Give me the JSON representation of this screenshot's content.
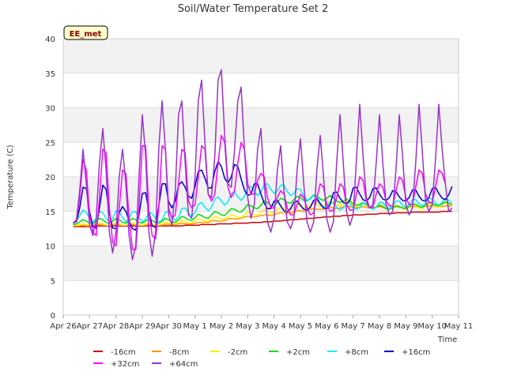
{
  "chart_data": {
    "type": "line",
    "title": "Soil/Water Temperature Set 2",
    "xlabel": "Time",
    "ylabel": "Temperature (C)",
    "badge": "EE_met",
    "ylim": [
      0,
      40
    ],
    "yticks": [
      0,
      5,
      10,
      15,
      20,
      25,
      30,
      35,
      40
    ],
    "xlim": [
      "2024-04-26",
      "2024-05-11"
    ],
    "xticks": [
      "Apr 26",
      "Apr 27",
      "Apr 28",
      "Apr 29",
      "Apr 30",
      "May 1",
      "May 2",
      "May 3",
      "May 4",
      "May 5",
      "May 6",
      "May 7",
      "May 8",
      "May 9",
      "May 10",
      "May 11"
    ],
    "x_start": "2024-04-26T09:00",
    "step_hours": 3,
    "grid": true,
    "legend_position": "bottom",
    "series": [
      {
        "name": "-16cm",
        "color": "#cc0000",
        "values": [
          12.8,
          12.8,
          12.8,
          12.8,
          12.8,
          12.8,
          12.9,
          12.9,
          12.9,
          12.9,
          12.9,
          12.9,
          12.9,
          12.9,
          12.9,
          12.9,
          12.9,
          12.9,
          12.9,
          12.9,
          12.9,
          12.9,
          12.9,
          12.9,
          12.9,
          12.9,
          12.9,
          12.9,
          12.9,
          12.9,
          12.9,
          12.9,
          12.9,
          12.9,
          13.0,
          13.0,
          13.0,
          13.0,
          13.0,
          13.1,
          13.1,
          13.1,
          13.1,
          13.1,
          13.2,
          13.2,
          13.2,
          13.2,
          13.2,
          13.3,
          13.3,
          13.3,
          13.3,
          13.3,
          13.4,
          13.4,
          13.4,
          13.4,
          13.5,
          13.5,
          13.5,
          13.6,
          13.6,
          13.6,
          13.7,
          13.7,
          13.8,
          13.8,
          13.8,
          13.9,
          13.9,
          14.0,
          14.0,
          14.0,
          14.1,
          14.1,
          14.2,
          14.2,
          14.2,
          14.3,
          14.3,
          14.3,
          14.4,
          14.4,
          14.4,
          14.5,
          14.5,
          14.5,
          14.5,
          14.6,
          14.6,
          14.6,
          14.6,
          14.7,
          14.7,
          14.7,
          14.7,
          14.7,
          14.8,
          14.8,
          14.8,
          14.8,
          14.8,
          14.9,
          14.9,
          14.9,
          14.9,
          14.9,
          14.9,
          14.9,
          14.9,
          14.9,
          15.0,
          15.0,
          15.0,
          15.0
        ]
      },
      {
        "name": "-8cm",
        "color": "#ff9900",
        "values": [
          12.9,
          12.9,
          12.9,
          13.0,
          12.9,
          12.9,
          13.0,
          13.0,
          13.1,
          13.0,
          13.0,
          13.0,
          13.0,
          13.1,
          13.0,
          13.0,
          13.0,
          13.0,
          13.1,
          13.0,
          13.0,
          13.0,
          13.0,
          13.1,
          13.0,
          13.0,
          13.0,
          13.0,
          13.2,
          13.1,
          13.1,
          13.1,
          13.2,
          13.3,
          13.2,
          13.2,
          13.2,
          13.3,
          13.4,
          13.4,
          13.4,
          13.4,
          13.6,
          13.7,
          13.6,
          13.6,
          13.7,
          13.9,
          14.0,
          13.9,
          13.9,
          14.0,
          14.2,
          14.3,
          14.2,
          14.2,
          14.3,
          14.4,
          14.5,
          14.5,
          14.4,
          14.5,
          14.7,
          14.8,
          14.8,
          14.7,
          14.8,
          14.9,
          15.1,
          15.1,
          15.0,
          15.1,
          15.3,
          15.4,
          15.3,
          15.3,
          15.3,
          15.5,
          15.6,
          15.5,
          15.4,
          15.5,
          15.7,
          15.8,
          15.7,
          15.6,
          15.5,
          15.6,
          15.7,
          15.6,
          15.5,
          15.5,
          15.6,
          15.7,
          15.6,
          15.4,
          15.4,
          15.5,
          15.7,
          15.6,
          15.5,
          15.5,
          15.6,
          15.7,
          15.7,
          15.6,
          15.6,
          15.7,
          15.8,
          15.8,
          15.7,
          15.7,
          15.7,
          15.8,
          15.8,
          15.8
        ]
      },
      {
        "name": "-2cm",
        "color": "#ffee00",
        "values": [
          13.0,
          13.0,
          13.1,
          13.2,
          13.1,
          13.0,
          13.0,
          13.2,
          13.3,
          13.2,
          13.0,
          13.0,
          13.2,
          13.3,
          13.2,
          13.0,
          13.0,
          13.2,
          13.3,
          13.2,
          13.0,
          13.0,
          13.2,
          13.3,
          13.2,
          13.0,
          13.0,
          13.3,
          13.5,
          13.3,
          13.2,
          13.2,
          13.4,
          13.7,
          13.5,
          13.3,
          13.3,
          13.6,
          13.9,
          13.8,
          13.6,
          13.6,
          13.9,
          14.2,
          14.1,
          13.9,
          13.9,
          14.2,
          14.5,
          14.4,
          14.1,
          14.1,
          14.5,
          14.9,
          14.7,
          14.5,
          14.5,
          14.9,
          15.3,
          15.1,
          14.8,
          14.8,
          15.2,
          15.6,
          15.4,
          15.2,
          15.2,
          15.6,
          16.0,
          15.8,
          15.5,
          15.5,
          15.9,
          16.3,
          16.1,
          15.8,
          15.7,
          16.1,
          16.5,
          16.3,
          15.9,
          15.8,
          16.1,
          16.5,
          16.3,
          15.9,
          15.7,
          15.9,
          16.2,
          15.9,
          15.6,
          15.5,
          15.7,
          16.0,
          15.8,
          15.4,
          15.3,
          15.6,
          15.9,
          15.7,
          15.4,
          15.3,
          15.6,
          16.0,
          15.8,
          15.5,
          15.4,
          15.8,
          16.2,
          16.0,
          15.7,
          15.6,
          16.0,
          16.3,
          16.1,
          15.9
        ]
      },
      {
        "name": "+2cm",
        "color": "#00dd00",
        "values": [
          13.1,
          13.2,
          13.5,
          13.8,
          13.6,
          13.3,
          13.3,
          13.6,
          14.0,
          13.8,
          13.4,
          13.3,
          13.6,
          14.0,
          13.8,
          13.4,
          13.3,
          13.6,
          14.0,
          13.8,
          13.4,
          13.3,
          13.6,
          13.9,
          13.7,
          13.4,
          13.3,
          13.6,
          14.0,
          13.8,
          13.5,
          13.4,
          13.8,
          14.3,
          14.1,
          13.8,
          13.7,
          14.1,
          14.6,
          14.4,
          14.1,
          14.0,
          14.5,
          15.0,
          14.8,
          14.5,
          14.4,
          14.9,
          15.4,
          15.3,
          15.0,
          14.9,
          15.4,
          16.0,
          15.8,
          15.5,
          15.4,
          15.9,
          16.5,
          16.3,
          15.9,
          15.8,
          16.3,
          16.9,
          16.7,
          16.3,
          16.2,
          16.7,
          17.2,
          17.0,
          16.6,
          16.5,
          16.9,
          17.4,
          17.2,
          16.8,
          16.6,
          16.9,
          17.3,
          17.0,
          16.5,
          16.3,
          16.5,
          16.8,
          16.5,
          16.1,
          15.9,
          16.0,
          16.3,
          16.0,
          15.6,
          15.5,
          15.6,
          15.9,
          15.7,
          15.4,
          15.3,
          15.5,
          15.8,
          15.7,
          15.5,
          15.4,
          15.7,
          16.1,
          16.0,
          15.7,
          15.6,
          15.9,
          16.3,
          16.2,
          15.9,
          15.8,
          16.1,
          16.4,
          16.2,
          16.0
        ]
      },
      {
        "name": "+8cm",
        "color": "#00eeff",
        "values": [
          13.2,
          13.6,
          14.4,
          15.2,
          14.8,
          14.0,
          13.5,
          14.0,
          15.0,
          14.8,
          14.0,
          13.5,
          14.0,
          15.1,
          14.9,
          14.1,
          13.5,
          14.0,
          15.0,
          14.9,
          14.1,
          13.5,
          13.9,
          14.8,
          14.7,
          14.0,
          13.4,
          13.8,
          14.9,
          14.9,
          14.2,
          13.7,
          14.2,
          15.4,
          15.5,
          14.8,
          14.3,
          14.8,
          16.0,
          16.3,
          15.6,
          15.1,
          15.6,
          16.8,
          17.1,
          16.5,
          15.9,
          16.4,
          17.6,
          17.8,
          17.1,
          16.6,
          17.2,
          18.4,
          18.6,
          17.9,
          17.3,
          17.8,
          18.9,
          19.0,
          18.2,
          17.6,
          18.0,
          18.8,
          18.8,
          17.9,
          17.3,
          17.6,
          18.3,
          18.2,
          17.3,
          16.6,
          16.8,
          17.3,
          17.1,
          16.2,
          15.6,
          15.8,
          16.3,
          16.2,
          15.6,
          15.2,
          15.5,
          16.1,
          16.1,
          15.6,
          15.3,
          15.6,
          16.2,
          16.2,
          15.6,
          15.3,
          15.6,
          16.3,
          16.3,
          15.7,
          15.4,
          15.8,
          16.5,
          16.5,
          15.9,
          15.6,
          16.0,
          16.7,
          16.7,
          16.1,
          15.8,
          16.2,
          16.9,
          16.8,
          16.2,
          15.9,
          16.3,
          16.9,
          16.6,
          16.3
        ]
      },
      {
        "name": "+16cm",
        "color": "#0000cc",
        "values": [
          13.4,
          13.5,
          15.5,
          18.5,
          18.3,
          15.0,
          12.8,
          12.6,
          15.5,
          18.8,
          18.2,
          14.7,
          12.6,
          12.5,
          14.8,
          15.7,
          15.0,
          13.6,
          12.5,
          12.3,
          14.5,
          17.6,
          17.7,
          15.0,
          12.9,
          12.7,
          15.8,
          19.0,
          19.0,
          16.4,
          15.5,
          16.5,
          18.8,
          19.3,
          18.5,
          17.2,
          16.9,
          18.6,
          20.8,
          21.0,
          19.8,
          18.4,
          18.4,
          20.8,
          22.2,
          21.5,
          19.8,
          19.1,
          20.0,
          21.8,
          21.5,
          19.7,
          18.1,
          17.3,
          17.5,
          19.0,
          19.0,
          17.5,
          16.2,
          15.4,
          15.4,
          16.5,
          16.6,
          15.8,
          15.1,
          14.9,
          15.4,
          16.3,
          16.5,
          15.9,
          15.3,
          15.2,
          15.6,
          16.6,
          16.8,
          16.1,
          15.5,
          15.4,
          16.0,
          17.7,
          17.8,
          16.9,
          16.3,
          16.1,
          16.6,
          18.4,
          18.5,
          17.5,
          16.7,
          16.5,
          17.0,
          18.3,
          18.4,
          17.5,
          16.8,
          16.6,
          17.0,
          18.0,
          17.9,
          17.1,
          16.6,
          16.5,
          17.0,
          18.1,
          18.1,
          17.2,
          16.6,
          16.5,
          17.0,
          18.3,
          18.5,
          17.6,
          16.9,
          16.7,
          17.4,
          18.6
        ]
      },
      {
        "name": "+32cm",
        "color": "#ff00ff",
        "values": [
          13.3,
          13.6,
          17.0,
          22.5,
          21.0,
          14.5,
          12.0,
          11.5,
          17.0,
          24.0,
          23.5,
          15.5,
          10.5,
          10.0,
          15.5,
          21.0,
          20.5,
          14.0,
          9.5,
          9.5,
          15.5,
          24.5,
          24.5,
          15.0,
          11.5,
          11.0,
          15.5,
          24.5,
          24.0,
          15.5,
          14.0,
          14.5,
          19.0,
          24.0,
          23.5,
          16.5,
          15.5,
          16.0,
          20.0,
          24.5,
          24.0,
          17.5,
          16.5,
          17.5,
          22.0,
          26.0,
          25.0,
          18.5,
          17.0,
          18.0,
          22.0,
          25.0,
          24.0,
          19.0,
          17.5,
          17.5,
          19.5,
          20.5,
          20.0,
          17.0,
          15.5,
          15.5,
          17.0,
          18.0,
          17.5,
          15.5,
          14.5,
          14.5,
          16.0,
          17.5,
          17.0,
          15.5,
          14.5,
          14.8,
          17.0,
          19.0,
          18.5,
          16.0,
          15.0,
          15.2,
          17.0,
          19.0,
          18.5,
          16.0,
          15.2,
          15.2,
          17.5,
          20.0,
          19.5,
          16.5,
          15.5,
          15.6,
          17.5,
          19.0,
          18.5,
          16.5,
          15.8,
          15.8,
          18.0,
          20.0,
          19.5,
          17.0,
          16.0,
          16.0,
          18.5,
          21.0,
          20.5,
          17.5,
          16.3,
          16.3,
          18.5,
          21.0,
          20.5,
          19.0
        ]
      },
      {
        "name": "+64cm",
        "color": "#9933cc",
        "values": [
          13.3,
          13.8,
          18.0,
          24.0,
          19.0,
          13.0,
          11.5,
          14.0,
          22.0,
          27.0,
          21.0,
          12.0,
          9.0,
          12.0,
          20.0,
          24.0,
          19.0,
          11.5,
          8.0,
          10.0,
          20.0,
          29.0,
          23.0,
          12.0,
          8.5,
          12.0,
          24.0,
          31.0,
          24.0,
          14.5,
          13.0,
          18.0,
          29.0,
          31.0,
          22.0,
          14.5,
          14.0,
          20.0,
          31.0,
          34.0,
          25.0,
          17.5,
          17.0,
          23.0,
          34.0,
          35.5,
          26.0,
          19.0,
          18.5,
          24.0,
          31.0,
          33.0,
          24.0,
          17.0,
          14.0,
          16.0,
          24.0,
          27.0,
          19.0,
          13.5,
          12.0,
          14.0,
          21.0,
          24.5,
          18.0,
          13.5,
          12.5,
          14.0,
          21.0,
          25.5,
          19.0,
          13.5,
          12.0,
          13.5,
          21.0,
          26.0,
          20.0,
          14.0,
          12.0,
          13.5,
          22.0,
          29.0,
          22.0,
          15.0,
          13.0,
          14.5,
          22.5,
          30.5,
          23.0,
          17.0,
          15.5,
          16.0,
          22.0,
          29.0,
          22.0,
          16.0,
          14.5,
          15.0,
          21.0,
          29.0,
          23.0,
          16.0,
          14.5,
          15.5,
          22.0,
          30.5,
          23.5,
          16.5,
          15.0,
          16.0,
          22.5,
          30.5,
          24.0,
          19.0,
          15.0,
          15.5
        ]
      }
    ]
  }
}
